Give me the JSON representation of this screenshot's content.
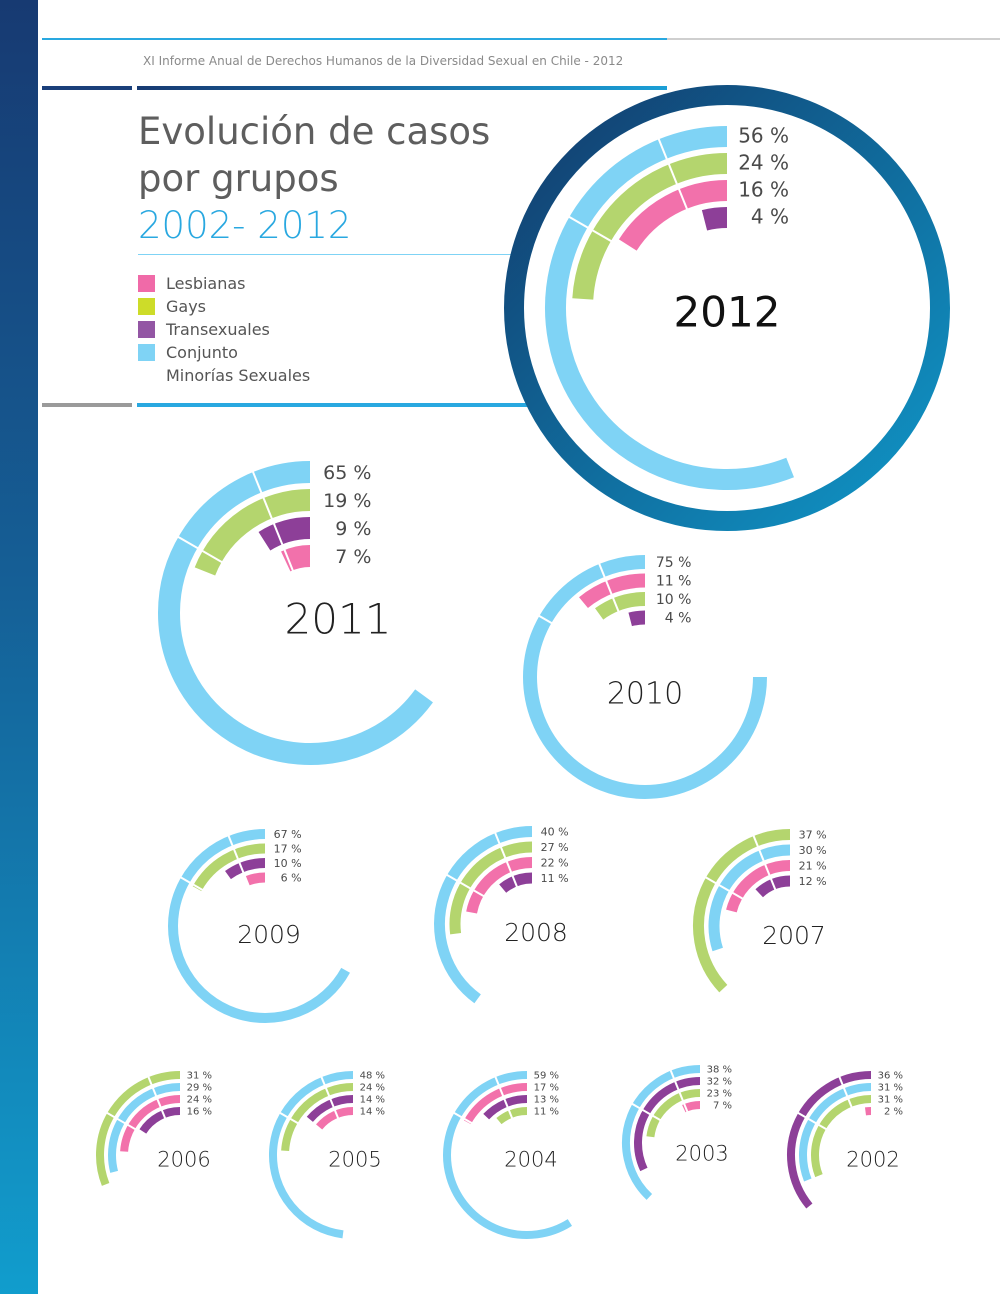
{
  "header": {
    "report_title": "XI Informe Anual de Derechos Humanos de la Diversidad Sexual en Chile - 2012",
    "title_line1": "Evolución de casos",
    "title_line2": "por grupos",
    "title_line3": "2002- 2012"
  },
  "legend": {
    "items": [
      {
        "label": "Lesbianas",
        "color": "#f06aa8"
      },
      {
        "label": "Gays",
        "color": "#cddc29"
      },
      {
        "label": "Transexuales",
        "color": "#9356a4"
      },
      {
        "label": "Conjunto",
        "color": "#7fd3f5"
      }
    ],
    "extra_line": "Minorías Sexuales"
  },
  "colors": {
    "lesbianas": "#f271ab",
    "gays": "#b4d56e",
    "transexuales": "#8d3f98",
    "conjunto": "#7fd3f5",
    "year_ring_dark": "#123a6b",
    "year_ring_light": "#0f98c9"
  },
  "chart_data": [
    {
      "type": "radial-bar",
      "year": "2012",
      "highlight": true,
      "rings": [
        {
          "group": "conjunto",
          "value": 56,
          "label": "56 %"
        },
        {
          "group": "gays",
          "value": 24,
          "label": "24 %"
        },
        {
          "group": "lesbianas",
          "value": 16,
          "label": "16 %"
        },
        {
          "group": "transexuales",
          "value": 4,
          "label": "4 %"
        }
      ]
    },
    {
      "type": "radial-bar",
      "year": "2011",
      "rings": [
        {
          "group": "conjunto",
          "value": 65,
          "label": "65 %"
        },
        {
          "group": "gays",
          "value": 19,
          "label": "19 %"
        },
        {
          "group": "transexuales",
          "value": 9,
          "label": "9 %"
        },
        {
          "group": "lesbianas",
          "value": 7,
          "label": "7 %"
        }
      ]
    },
    {
      "type": "radial-bar",
      "year": "2010",
      "rings": [
        {
          "group": "conjunto",
          "value": 75,
          "label": "75 %"
        },
        {
          "group": "lesbianas",
          "value": 11,
          "label": "11 %"
        },
        {
          "group": "gays",
          "value": 10,
          "label": "10 %"
        },
        {
          "group": "transexuales",
          "value": 4,
          "label": "4 %"
        }
      ]
    },
    {
      "type": "radial-bar",
      "year": "2009",
      "rings": [
        {
          "group": "conjunto",
          "value": 67,
          "label": "67 %"
        },
        {
          "group": "gays",
          "value": 17,
          "label": "17 %"
        },
        {
          "group": "transexuales",
          "value": 10,
          "label": "10 %"
        },
        {
          "group": "lesbianas",
          "value": 6,
          "label": "6 %"
        }
      ]
    },
    {
      "type": "radial-bar",
      "year": "2008",
      "rings": [
        {
          "group": "conjunto",
          "value": 40,
          "label": "40 %"
        },
        {
          "group": "gays",
          "value": 27,
          "label": "27 %"
        },
        {
          "group": "lesbianas",
          "value": 22,
          "label": "22 %"
        },
        {
          "group": "transexuales",
          "value": 11,
          "label": "11 %"
        }
      ]
    },
    {
      "type": "radial-bar",
      "year": "2007",
      "rings": [
        {
          "group": "gays",
          "value": 37,
          "label": "37 %"
        },
        {
          "group": "conjunto",
          "value": 30,
          "label": "30 %"
        },
        {
          "group": "lesbianas",
          "value": 21,
          "label": "21 %"
        },
        {
          "group": "transexuales",
          "value": 12,
          "label": "12 %"
        }
      ]
    },
    {
      "type": "radial-bar",
      "year": "2006",
      "rings": [
        {
          "group": "gays",
          "value": 31,
          "label": "31 %"
        },
        {
          "group": "conjunto",
          "value": 29,
          "label": "29 %"
        },
        {
          "group": "lesbianas",
          "value": 24,
          "label": "24 %"
        },
        {
          "group": "transexuales",
          "value": 16,
          "label": "16 %"
        }
      ]
    },
    {
      "type": "radial-bar",
      "year": "2005",
      "rings": [
        {
          "group": "conjunto",
          "value": 48,
          "label": "48 %"
        },
        {
          "group": "gays",
          "value": 24,
          "label": "24 %"
        },
        {
          "group": "transexuales",
          "value": 14,
          "label": "14 %"
        },
        {
          "group": "lesbianas",
          "value": 14,
          "label": "14 %"
        }
      ]
    },
    {
      "type": "radial-bar",
      "year": "2004",
      "rings": [
        {
          "group": "conjunto",
          "value": 59,
          "label": "59 %"
        },
        {
          "group": "lesbianas",
          "value": 17,
          "label": "17 %"
        },
        {
          "group": "transexuales",
          "value": 13,
          "label": "13 %"
        },
        {
          "group": "gays",
          "value": 11,
          "label": "11 %"
        }
      ]
    },
    {
      "type": "radial-bar",
      "year": "2003",
      "rings": [
        {
          "group": "conjunto",
          "value": 38,
          "label": "38 %"
        },
        {
          "group": "transexuales",
          "value": 32,
          "label": "32 %"
        },
        {
          "group": "gays",
          "value": 23,
          "label": "23 %"
        },
        {
          "group": "lesbianas",
          "value": 7,
          "label": "7 %"
        }
      ]
    },
    {
      "type": "radial-bar",
      "year": "2002",
      "rings": [
        {
          "group": "transexuales",
          "value": 36,
          "label": "36 %"
        },
        {
          "group": "conjunto",
          "value": 31,
          "label": "31 %"
        },
        {
          "group": "gays",
          "value": 31,
          "label": "31 %"
        },
        {
          "group": "lesbianas",
          "value": 2,
          "label": "2 %"
        }
      ]
    }
  ]
}
